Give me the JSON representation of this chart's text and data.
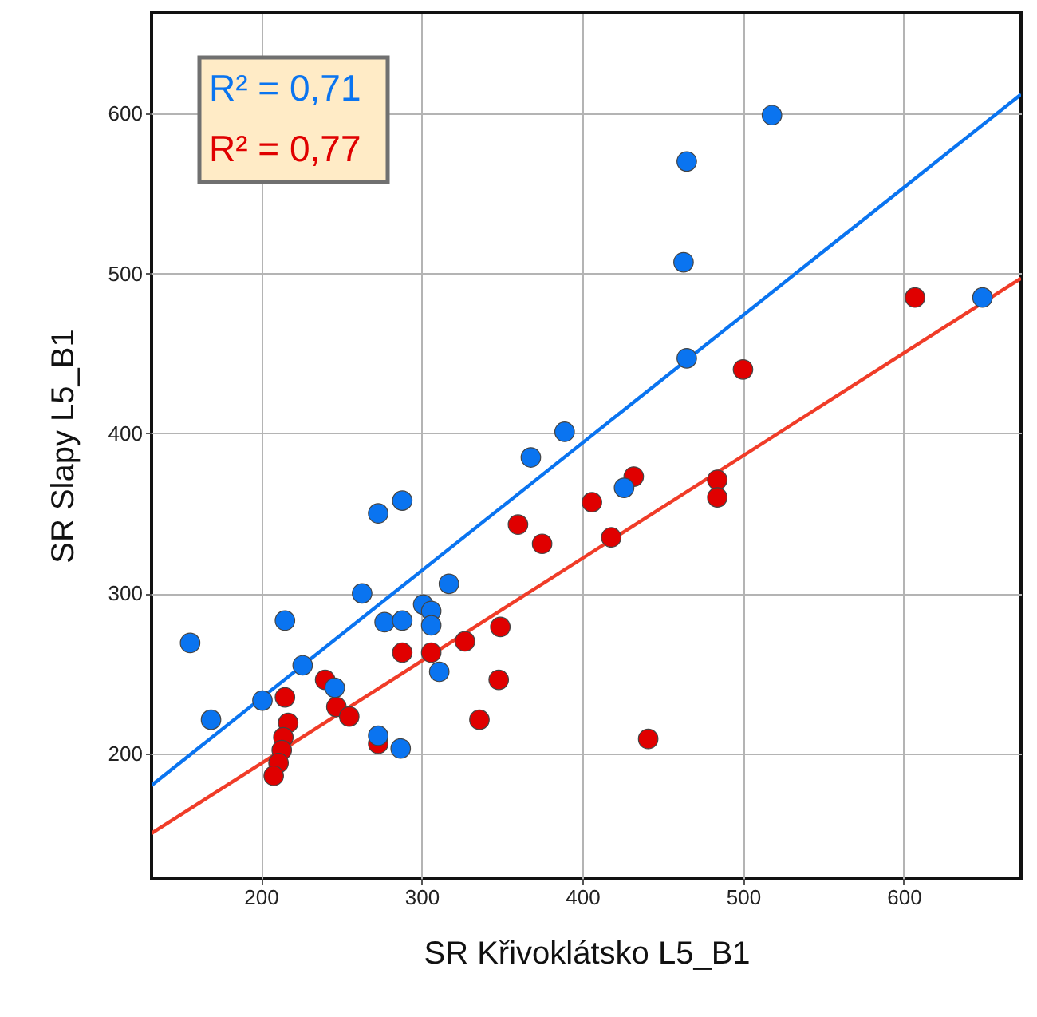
{
  "chart_data": {
    "type": "scatter",
    "xlabel": "SR Křivoklátsko L5_B1",
    "ylabel": "SR Slapy L5_B1",
    "xlim": [
      132,
      673
    ],
    "ylim": [
      122,
      663
    ],
    "xticks": [
      200,
      300,
      400,
      500,
      600
    ],
    "yticks": [
      200,
      300,
      400,
      500,
      600
    ],
    "grid": true,
    "annotations": [
      "R² = 0,71",
      "R² = 0,77"
    ],
    "series": [
      {
        "marker": "circle",
        "color": "#0a74f0",
        "x": [
          156,
          169,
          201,
          215,
          226,
          246,
          263,
          273,
          288,
          277,
          288,
          301,
          306,
          306,
          311,
          317,
          273,
          287,
          368,
          389,
          426,
          465,
          463,
          465,
          518,
          649
        ],
        "values": [
          269,
          221,
          233,
          283,
          255,
          241,
          300,
          350,
          358,
          282,
          283,
          293,
          289,
          280,
          251,
          306,
          211,
          203,
          385,
          401,
          366,
          447,
          507,
          570,
          599,
          485
        ]
      },
      {
        "marker": "circle",
        "color": "#e00000",
        "x": [
          215,
          217,
          214,
          213,
          211,
          208,
          240,
          247,
          255,
          273,
          288,
          306,
          327,
          336,
          348,
          349,
          360,
          375,
          406,
          418,
          432,
          441,
          484,
          484,
          500,
          607
        ],
        "values": [
          235,
          219,
          210,
          202,
          194,
          186,
          246,
          229,
          223,
          206,
          263,
          263,
          270,
          221,
          246,
          279,
          343,
          331,
          357,
          335,
          373,
          209,
          371,
          360,
          440,
          485
        ]
      },
      {
        "type": "line",
        "marker": "none",
        "line_style": "solid",
        "color": "#0a74f0",
        "x": [
          132,
          673
        ],
        "values": [
          180,
          612
        ]
      },
      {
        "type": "line",
        "marker": "none",
        "line_style": "solid",
        "color": "#f03c28",
        "x": [
          132,
          673
        ],
        "values": [
          150,
          497
        ]
      }
    ]
  }
}
